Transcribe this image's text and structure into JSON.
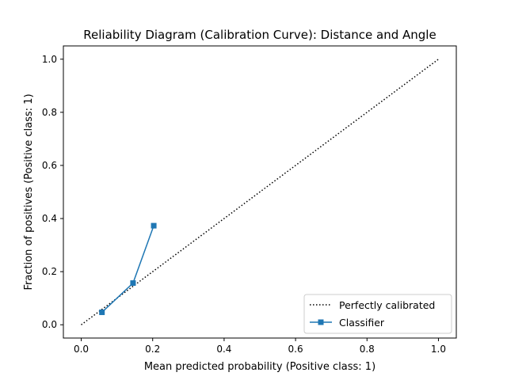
{
  "chart_data": {
    "type": "line",
    "title": "Reliability Diagram (Calibration Curve): Distance and Angle",
    "xlabel": "Mean predicted probability (Positive class: 1)",
    "ylabel": "Fraction of positives (Positive class: 1)",
    "xlim": [
      -0.05,
      1.05
    ],
    "ylim": [
      -0.05,
      1.05
    ],
    "xticks": [
      0.0,
      0.2,
      0.4,
      0.6,
      0.8,
      1.0
    ],
    "yticks": [
      0.0,
      0.2,
      0.4,
      0.6,
      0.8,
      1.0
    ],
    "xtick_labels": [
      "0.0",
      "0.2",
      "0.4",
      "0.6",
      "0.8",
      "1.0"
    ],
    "ytick_labels": [
      "0.0",
      "0.2",
      "0.4",
      "0.6",
      "0.8",
      "1.0"
    ],
    "grid": false,
    "legend_position": "lower-right",
    "series": [
      {
        "name": "Perfectly calibrated",
        "style": "dotted",
        "color": "#000000",
        "x": [
          0.0,
          1.0
        ],
        "y": [
          0.0,
          1.0
        ]
      },
      {
        "name": "Classifier",
        "style": "solid",
        "marker": "square",
        "color": "#1f77b4",
        "x": [
          0.058,
          0.145,
          0.203
        ],
        "y": [
          0.047,
          0.157,
          0.373
        ]
      }
    ]
  }
}
